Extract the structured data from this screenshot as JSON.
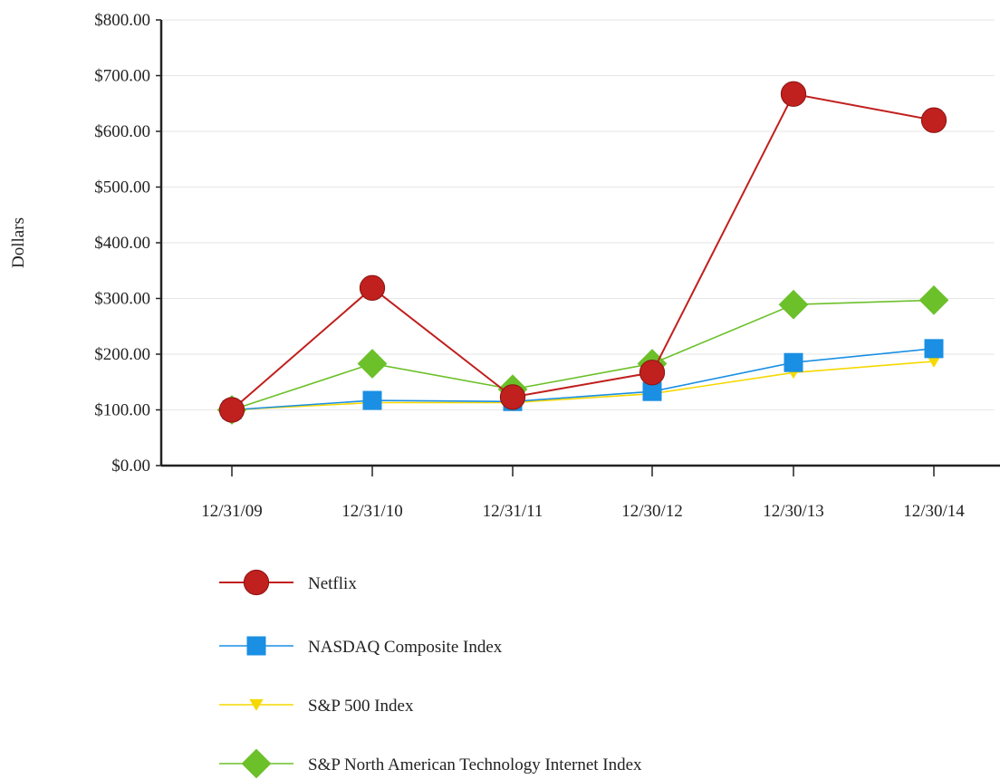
{
  "chart_data": {
    "type": "line",
    "title": "",
    "xlabel": "",
    "ylabel": "Dollars",
    "categories": [
      "12/31/09",
      "12/31/10",
      "12/31/11",
      "12/30/12",
      "12/30/13",
      "12/30/14"
    ],
    "y_ticks": [
      "$0.00",
      "$100.00",
      "$200.00",
      "$300.00",
      "$400.00",
      "$500.00",
      "$600.00",
      "$700.00",
      "$800.00"
    ],
    "ylim": [
      0,
      800
    ],
    "grid": "horizontal",
    "legend_position": "bottom",
    "series": [
      {
        "name": "Netflix",
        "color": "#c0201e",
        "marker": "circle",
        "values": [
          100,
          319,
          123,
          167,
          667,
          620
        ]
      },
      {
        "name": "NASDAQ Composite Index",
        "color": "#1a8fe3",
        "marker": "square",
        "values": [
          100,
          117,
          115,
          133,
          185,
          210
        ]
      },
      {
        "name": "S&P 500 Index",
        "color": "#f5d800",
        "marker": "triangle-down",
        "values": [
          100,
          113,
          113,
          129,
          167,
          187
        ]
      },
      {
        "name": "S&P North American Technology Internet Index",
        "color": "#6cc02a",
        "marker": "diamond",
        "values": [
          100,
          183,
          137,
          183,
          289,
          297
        ]
      }
    ]
  }
}
